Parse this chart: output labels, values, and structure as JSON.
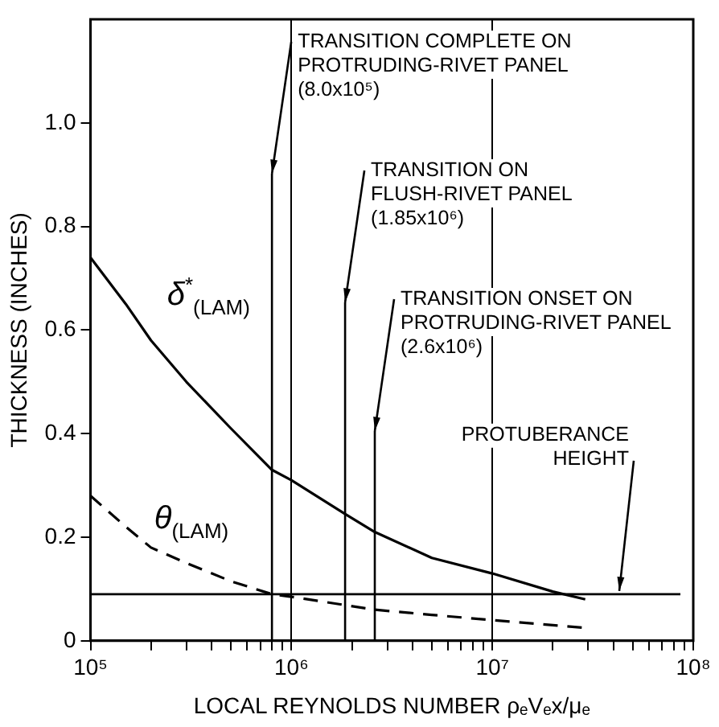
{
  "chart_data": {
    "type": "line",
    "xlabel": "LOCAL REYNOLDS NUMBER ρₑVₑx/μₑ",
    "ylabel": "THICKNESS (INCHES)",
    "log": "x",
    "xlim": [
      100000,
      100000000
    ],
    "xticks": [
      {
        "value": 100000,
        "label": "10⁵"
      },
      {
        "value": 200000,
        "label": null
      },
      {
        "value": 300000,
        "label": null
      },
      {
        "value": 400000,
        "label": null
      },
      {
        "value": 500000,
        "label": null
      },
      {
        "value": 600000,
        "label": null
      },
      {
        "value": 700000,
        "label": null
      },
      {
        "value": 800000,
        "label": null
      },
      {
        "value": 900000,
        "label": null
      },
      {
        "value": 1000000,
        "label": "10⁶"
      },
      {
        "value": 2000000,
        "label": null
      },
      {
        "value": 3000000,
        "label": null
      },
      {
        "value": 4000000,
        "label": null
      },
      {
        "value": 5000000,
        "label": null
      },
      {
        "value": 6000000,
        "label": null
      },
      {
        "value": 7000000,
        "label": null
      },
      {
        "value": 8000000,
        "label": null
      },
      {
        "value": 9000000,
        "label": null
      },
      {
        "value": 10000000,
        "label": "10⁷"
      },
      {
        "value": 20000000,
        "label": null
      },
      {
        "value": 30000000,
        "label": null
      },
      {
        "value": 40000000,
        "label": null
      },
      {
        "value": 50000000,
        "label": null
      },
      {
        "value": 60000000,
        "label": null
      },
      {
        "value": 70000000,
        "label": null
      },
      {
        "value": 80000000,
        "label": null
      },
      {
        "value": 90000000,
        "label": null
      },
      {
        "value": 100000000,
        "label": "10⁸"
      }
    ],
    "ylim": [
      0,
      1.2
    ],
    "yticks": [
      {
        "value": 0,
        "label": "0"
      },
      {
        "value": 0.2,
        "label": "0.2"
      },
      {
        "value": 0.4,
        "label": "0.4"
      },
      {
        "value": 0.6,
        "label": "0.6"
      },
      {
        "value": 0.8,
        "label": "0.8"
      },
      {
        "value": 1.0,
        "label": "1.0"
      }
    ],
    "grid": "x",
    "legend": false,
    "marker": "none",
    "series": [
      {
        "name": "δ$^{*}$$_{(LAM)}$",
        "color": "#000000",
        "line_style": "solid",
        "x": [
          100000,
          150000,
          200000,
          300000,
          500000,
          800000,
          1000000,
          1850000,
          2600000,
          5000000,
          10000000,
          20000000,
          29000000
        ],
        "values": [
          0.74,
          0.65,
          0.58,
          0.5,
          0.41,
          0.33,
          0.31,
          0.245,
          0.21,
          0.16,
          0.13,
          0.095,
          0.08
        ]
      },
      {
        "name": "θ$_{(LAM)}$",
        "color": "#000000",
        "line_style": "dashed",
        "x": [
          100000,
          150000,
          200000,
          300000,
          500000,
          800000,
          1000000,
          2600000,
          5000000,
          10000000,
          29000000
        ],
        "values": [
          0.28,
          0.22,
          0.18,
          0.15,
          0.115,
          0.09,
          0.085,
          0.06,
          0.05,
          0.04,
          0.025
        ]
      }
    ],
    "ref_lines": [
      {
        "axis": "x",
        "value": 800000,
        "label": "TRANSITION COMPLETE ON PROTRUDING-RIVET PANEL (8.0x10⁵)"
      },
      {
        "axis": "x",
        "value": 1850000,
        "label": "TRANSITION ON FLUSH-RIVET PANEL (1.85x10⁶)"
      },
      {
        "axis": "x",
        "value": 2600000,
        "label": "TRANSITION ONSET ON PROTRUDING-RIVET PANEL (2.6x10⁶)"
      },
      {
        "axis": "y",
        "value": 0.09,
        "label": "PROTUBERANCE HEIGHT"
      }
    ]
  }
}
